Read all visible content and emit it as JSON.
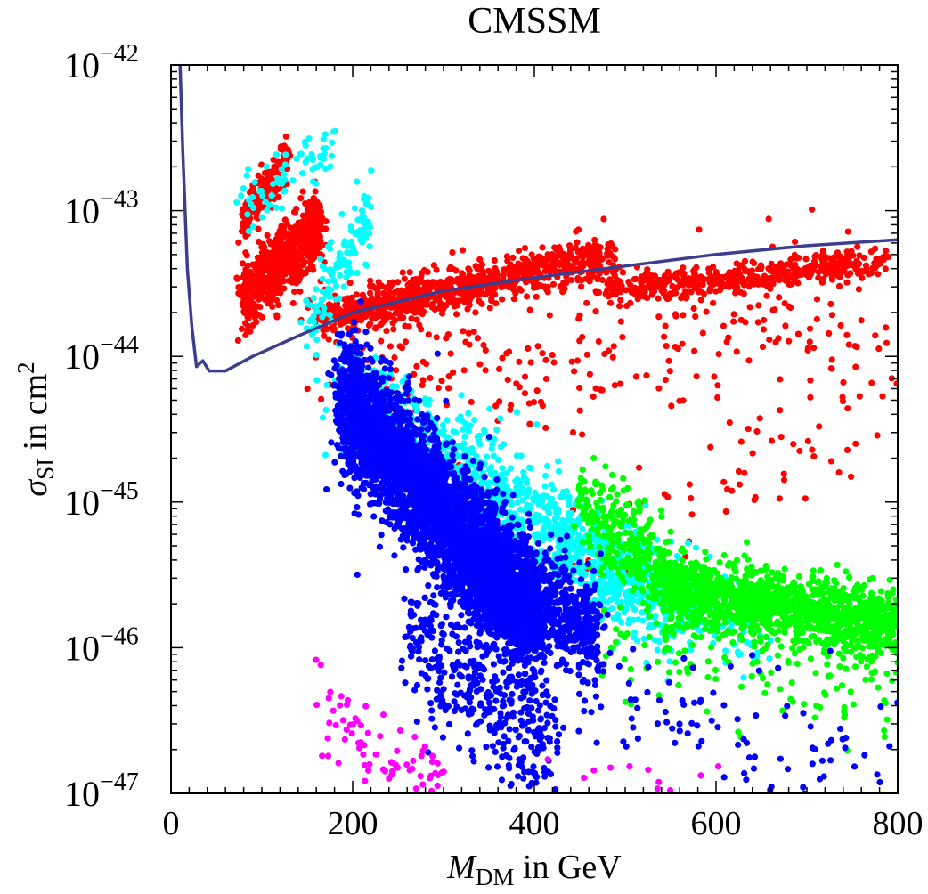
{
  "chart_data": {
    "type": "scatter",
    "title": "CMSSM",
    "xlabel": {
      "symbol": "M",
      "sub": "DM",
      "rest": " in GeV"
    },
    "ylabel": {
      "symbol": "σ",
      "sub": "SI",
      "rest": " in cm",
      "sup": "2"
    },
    "xlim": [
      0,
      800
    ],
    "ylim": [
      1e-47,
      1e-42
    ],
    "yscale": "log",
    "grid": false,
    "legend": "none",
    "x_ticks": [
      {
        "value": 0,
        "label": "0"
      },
      {
        "value": 200,
        "label": "200"
      },
      {
        "value": 400,
        "label": "400"
      },
      {
        "value": 600,
        "label": "600"
      },
      {
        "value": 800,
        "label": "800"
      }
    ],
    "y_ticks": [
      {
        "value": -42,
        "base": "10",
        "exp": "−42"
      },
      {
        "value": -43,
        "base": "10",
        "exp": "−43"
      },
      {
        "value": -44,
        "base": "10",
        "exp": "−44"
      },
      {
        "value": -45,
        "base": "10",
        "exp": "−45"
      },
      {
        "value": -46,
        "base": "10",
        "exp": "−46"
      },
      {
        "value": -47,
        "base": "10",
        "exp": "−47"
      }
    ],
    "limit_curve": {
      "color": "#3d3d8f",
      "points": [
        [
          10,
          -42
        ],
        [
          13,
          -42.6
        ],
        [
          18,
          -43.4
        ],
        [
          23,
          -43.8
        ],
        [
          28,
          -44.07
        ],
        [
          35,
          -44.03
        ],
        [
          42,
          -44.1
        ],
        [
          60,
          -44.1
        ],
        [
          90,
          -44.0
        ],
        [
          140,
          -43.86
        ],
        [
          200,
          -43.7
        ],
        [
          300,
          -43.55
        ],
        [
          400,
          -43.46
        ],
        [
          500,
          -43.38
        ],
        [
          600,
          -43.3
        ],
        [
          700,
          -43.24
        ],
        [
          800,
          -43.2
        ]
      ]
    },
    "series": [
      {
        "color": "#ff0000",
        "clusters": [
          {
            "n": 700,
            "x": [
              78,
              165
            ],
            "y": [
              -43.6,
              -43.1
            ],
            "spread": 0.12
          },
          {
            "n": 160,
            "x": [
              78,
              130
            ],
            "y": [
              -43.1,
              -42.6
            ],
            "spread": 0.08
          },
          {
            "n": 900,
            "x": [
              165,
              480
            ],
            "y": [
              -43.75,
              -43.3
            ],
            "spread": 0.07
          },
          {
            "n": 450,
            "x": [
              480,
              780
            ],
            "y": [
              -43.55,
              -43.35
            ],
            "spread": 0.05
          },
          {
            "n": 260,
            "x": [
              180,
              760
            ],
            "y": [
              -44.2,
              -43.6
            ],
            "spread": 0.25
          },
          {
            "n": 90,
            "x": [
              400,
              800
            ],
            "y": [
              -45.6,
              -44.2
            ],
            "spread": 0.3
          }
        ]
      },
      {
        "color": "#00ffff",
        "clusters": [
          {
            "n": 70,
            "x": [
              80,
              180
            ],
            "y": [
              -43.0,
              -42.55
            ],
            "spread": 0.1
          },
          {
            "n": 120,
            "x": [
              150,
              220
            ],
            "y": [
              -43.8,
              -43.0
            ],
            "spread": 0.12
          },
          {
            "n": 1300,
            "x": [
              190,
              560
            ],
            "y": [
              -44.3,
              -45.75
            ],
            "spread": 0.18
          },
          {
            "n": 250,
            "x": [
              420,
              650
            ],
            "y": [
              -45.3,
              -45.9
            ],
            "spread": 0.15
          }
        ]
      },
      {
        "color": "#00ff00",
        "clusters": [
          {
            "n": 350,
            "x": [
              450,
              560
            ],
            "y": [
              -45.0,
              -45.6
            ],
            "spread": 0.15
          },
          {
            "n": 1300,
            "x": [
              550,
              800
            ],
            "y": [
              -45.6,
              -45.85
            ],
            "spread": 0.12
          },
          {
            "n": 120,
            "x": [
              480,
              800
            ],
            "y": [
              -46.0,
              -46.3
            ],
            "spread": 0.18
          }
        ]
      },
      {
        "color": "#0000ff",
        "clusters": [
          {
            "n": 3800,
            "x": [
              190,
              400
            ],
            "y": [
              -44.3,
              -45.8
            ],
            "spread": 0.22
          },
          {
            "n": 900,
            "x": [
              320,
              470
            ],
            "y": [
              -45.4,
              -45.9
            ],
            "spread": 0.18
          },
          {
            "n": 420,
            "x": [
              260,
              420
            ],
            "y": [
              -45.9,
              -46.7
            ],
            "spread": 0.25
          },
          {
            "n": 110,
            "x": [
              430,
              800
            ],
            "y": [
              -46.1,
              -46.9
            ],
            "spread": 0.25
          }
        ]
      },
      {
        "color": "#ff00ff",
        "clusters": [
          {
            "n": 80,
            "x": [
              160,
              300
            ],
            "y": [
              -46.4,
              -47.0
            ],
            "spread": 0.15
          },
          {
            "n": 12,
            "x": [
              380,
              610
            ],
            "y": [
              -46.8,
              -47.0
            ],
            "spread": 0.08
          }
        ]
      }
    ]
  }
}
